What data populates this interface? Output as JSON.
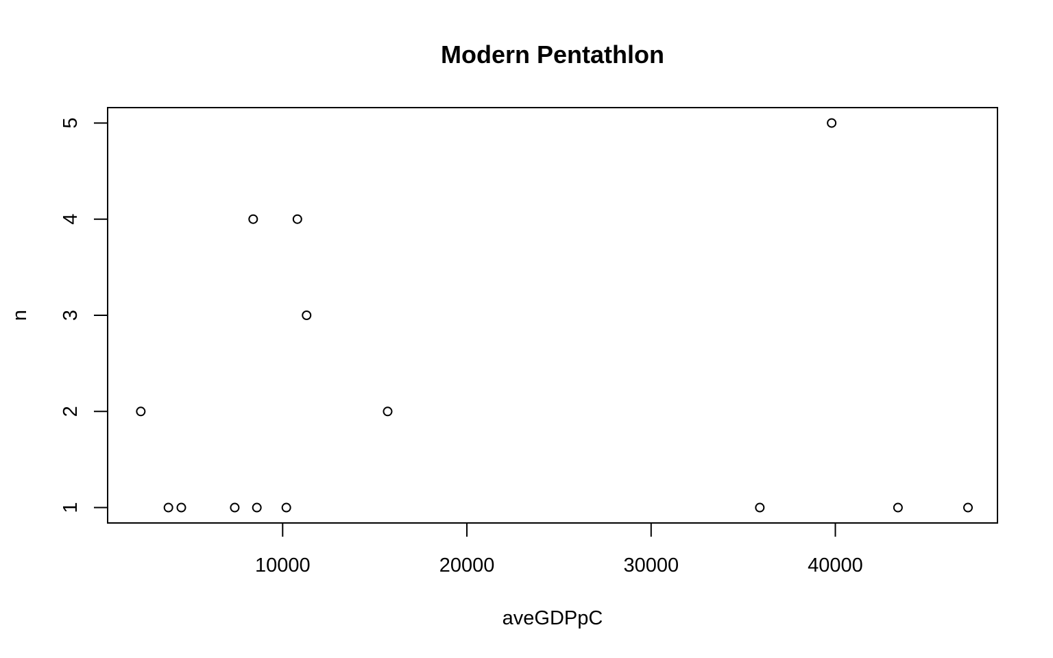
{
  "chart_data": {
    "type": "scatter",
    "title": "Modern Pentathlon",
    "xlabel": "aveGDPpC",
    "ylabel": "n",
    "xlim": [
      500,
      48800
    ],
    "ylim": [
      0.84,
      5.16
    ],
    "xticks": [
      10000,
      20000,
      30000,
      40000
    ],
    "yticks": [
      1,
      2,
      3,
      4,
      5
    ],
    "grid": false,
    "legend": "none",
    "points": [
      {
        "x": 2300,
        "y": 2
      },
      {
        "x": 3800,
        "y": 1
      },
      {
        "x": 4500,
        "y": 1
      },
      {
        "x": 7400,
        "y": 1
      },
      {
        "x": 8400,
        "y": 4
      },
      {
        "x": 8600,
        "y": 1
      },
      {
        "x": 10200,
        "y": 1
      },
      {
        "x": 10800,
        "y": 4
      },
      {
        "x": 11300,
        "y": 3
      },
      {
        "x": 15700,
        "y": 2
      },
      {
        "x": 35900,
        "y": 1
      },
      {
        "x": 39800,
        "y": 5
      },
      {
        "x": 43400,
        "y": 1
      },
      {
        "x": 47200,
        "y": 1
      }
    ]
  }
}
